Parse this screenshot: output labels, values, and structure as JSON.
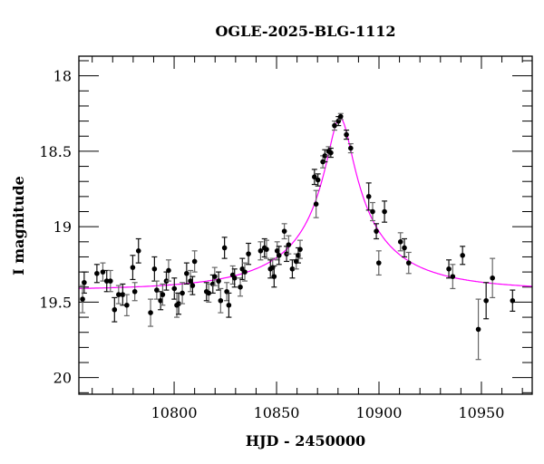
{
  "chart_data": {
    "type": "scatter",
    "title": "OGLE-2025-BLG-1112",
    "xlabel": "HJD - 2450000",
    "ylabel": "I magnitude",
    "xlim": [
      10753.5,
      10974.8
    ],
    "ylim": [
      20.11,
      17.87
    ],
    "y_inverted": true,
    "grid": false,
    "x_ticks": [
      "10800",
      "10850",
      "10900",
      "10950"
    ],
    "x_tick_values": [
      10800,
      10850,
      10900,
      10950
    ],
    "y_ticks": [
      "18",
      "18.5",
      "19",
      "19.5",
      "20"
    ],
    "y_tick_values": [
      18,
      18.5,
      19,
      19.5,
      20
    ],
    "colors": {
      "points": "#000000",
      "model": "#ff00ff"
    },
    "series": [
      {
        "type": "errorbar-scatter",
        "x": [
          10756.1,
          10755.3,
          10762.3,
          10765.2,
          10767.1,
          10768.9,
          10770.9,
          10772.9,
          10774.9,
          10776.9,
          10779.8,
          10780.8,
          10782.6,
          10788.5,
          10790.4,
          10791.5,
          10793.4,
          10794.4,
          10796.2,
          10797.3,
          10800.1,
          10801.3,
          10802.2,
          10804.0,
          10806.1,
          10808.0,
          10809.0,
          10810.0,
          10815.8,
          10816.9,
          10818.9,
          10819.8,
          10821.7,
          10822.7,
          10824.6,
          10825.7,
          10826.7,
          10828.6,
          10829.5,
          10832.3,
          10833.3,
          10834.5,
          10836.3,
          10842.2,
          10844.1,
          10845.1,
          10847.0,
          10848.1,
          10848.8,
          10850.3,
          10851.2,
          10853.8,
          10854.9,
          10855.9,
          10857.7,
          10859.6,
          10860.6,
          10861.5,
          10868.5,
          10869.3,
          10870.2,
          10872.6,
          10873.6,
          10875.4,
          10876.5,
          10878.3,
          10880.2,
          10881.3,
          10884.1,
          10886.2,
          10895.0,
          10896.9,
          10898.7,
          10899.9,
          10902.7,
          10910.5,
          10912.4,
          10914.5,
          10934.1,
          10936.0,
          10940.8,
          10948.5,
          10952.3,
          10955.4,
          10965.2
        ],
        "y": [
          19.37,
          19.48,
          19.31,
          19.3,
          19.36,
          19.36,
          19.55,
          19.45,
          19.45,
          19.52,
          19.27,
          19.43,
          19.16,
          19.57,
          19.28,
          19.42,
          19.49,
          19.45,
          19.36,
          19.29,
          19.41,
          19.52,
          19.51,
          19.44,
          19.31,
          19.36,
          19.39,
          19.23,
          19.43,
          19.44,
          19.38,
          19.33,
          19.36,
          19.49,
          19.14,
          19.43,
          19.52,
          19.32,
          19.34,
          19.4,
          19.28,
          19.3,
          19.18,
          19.16,
          19.14,
          19.15,
          19.28,
          19.27,
          19.33,
          19.16,
          19.19,
          19.03,
          19.18,
          19.12,
          19.28,
          19.23,
          19.19,
          19.15,
          18.67,
          18.85,
          18.69,
          18.57,
          18.53,
          18.5,
          18.51,
          18.33,
          18.3,
          18.27,
          18.39,
          18.48,
          18.8,
          18.9,
          19.03,
          19.24,
          18.9,
          19.1,
          19.14,
          19.24,
          19.28,
          19.33,
          19.19,
          19.68,
          19.49,
          19.34,
          19.49
        ],
        "err": [
          0.07,
          0.09,
          0.06,
          0.06,
          0.07,
          0.07,
          0.08,
          0.06,
          0.07,
          0.07,
          0.08,
          0.06,
          0.08,
          0.09,
          0.08,
          0.06,
          0.06,
          0.07,
          0.06,
          0.07,
          0.07,
          0.08,
          0.07,
          0.07,
          0.07,
          0.07,
          0.06,
          0.07,
          0.06,
          0.06,
          0.06,
          0.06,
          0.06,
          0.08,
          0.07,
          0.06,
          0.08,
          0.06,
          0.06,
          0.06,
          0.07,
          0.06,
          0.07,
          0.06,
          0.06,
          0.06,
          0.06,
          0.06,
          0.07,
          0.06,
          0.06,
          0.05,
          0.05,
          0.06,
          0.06,
          0.05,
          0.05,
          0.06,
          0.05,
          0.09,
          0.04,
          0.04,
          0.04,
          0.03,
          0.03,
          0.03,
          0.03,
          0.02,
          0.03,
          0.03,
          0.09,
          0.06,
          0.05,
          0.08,
          0.07,
          0.06,
          0.06,
          0.07,
          0.06,
          0.08,
          0.06,
          0.2,
          0.12,
          0.13,
          0.07
        ]
      },
      {
        "type": "model-curve",
        "model": "point-lens",
        "t0": 10881,
        "u0": 0.1,
        "tE": 59,
        "fs": 0.206,
        "baseline": 19.42
      }
    ]
  }
}
